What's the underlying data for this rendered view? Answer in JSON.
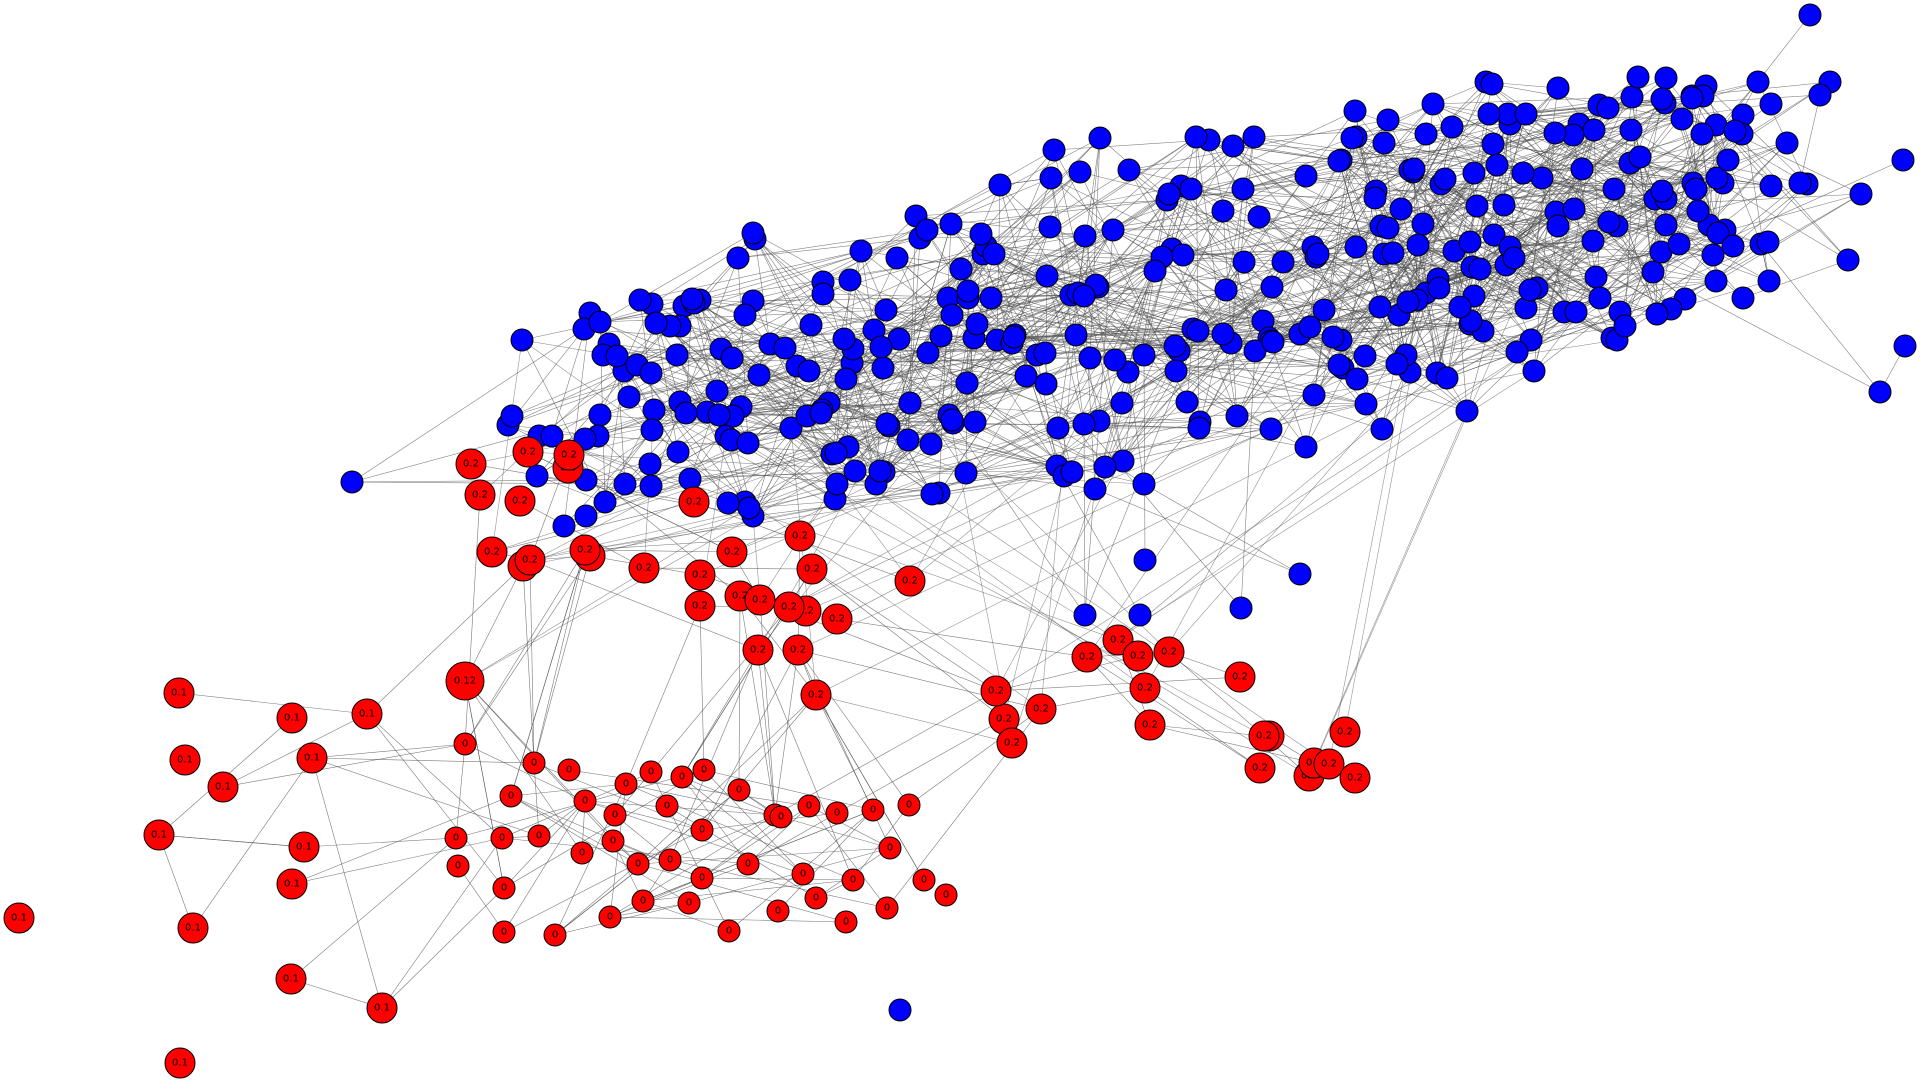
{
  "graph": {
    "colors": {
      "edge": "#4d4d4d",
      "node_outline": "#000000",
      "label": "#000000",
      "groups": {
        "blue": "#0000ff",
        "red": "#ff0000"
      }
    },
    "red_nodes": {
      "labels": [
        "0.2",
        "0.2",
        "0.2",
        "0.2",
        "0.2",
        "0.2",
        "0.2",
        "0.2",
        "0.2",
        "0.2",
        "0.2",
        "0.2",
        "0.2",
        "0.2",
        "0.2",
        "0.2",
        "0.2",
        "0.2",
        "0.2",
        "0.2",
        "0.2",
        "0.2",
        "0.2",
        "0.2",
        "0.2",
        "0.2",
        "0.2",
        "0.2",
        "0.2",
        "0.2",
        "0.2",
        "0.2",
        "0.2",
        "0.2",
        "0.2",
        "0.2",
        "0.2",
        "0.2",
        "0.2",
        "0.2",
        "0.2",
        "0.2",
        "0.2",
        "0.2",
        "0.2",
        "0.2",
        "0.12",
        "0.1",
        "0.1",
        "0.1",
        "0.1",
        "0.1",
        "0.1",
        "0.1",
        "0.1",
        "0.1",
        "0.1",
        "0.1",
        "0.1",
        "0.1",
        "0.1",
        "0",
        "0",
        "0",
        "0",
        "0",
        "0",
        "0",
        "0",
        "0",
        "0",
        "0",
        "0",
        "0",
        "0",
        "0",
        "0",
        "0",
        "0",
        "0",
        "0",
        "0",
        "0",
        "0",
        "0",
        "0",
        "0",
        "0",
        "0",
        "0",
        "0",
        "0",
        "0",
        "0",
        "0",
        "0",
        "0",
        "0",
        "0",
        "0",
        "0",
        "0",
        "0",
        "0",
        "0",
        "0",
        "0",
        "0",
        "0",
        "0",
        "0",
        "0",
        "0",
        "0",
        "0",
        "0"
      ]
    }
  }
}
